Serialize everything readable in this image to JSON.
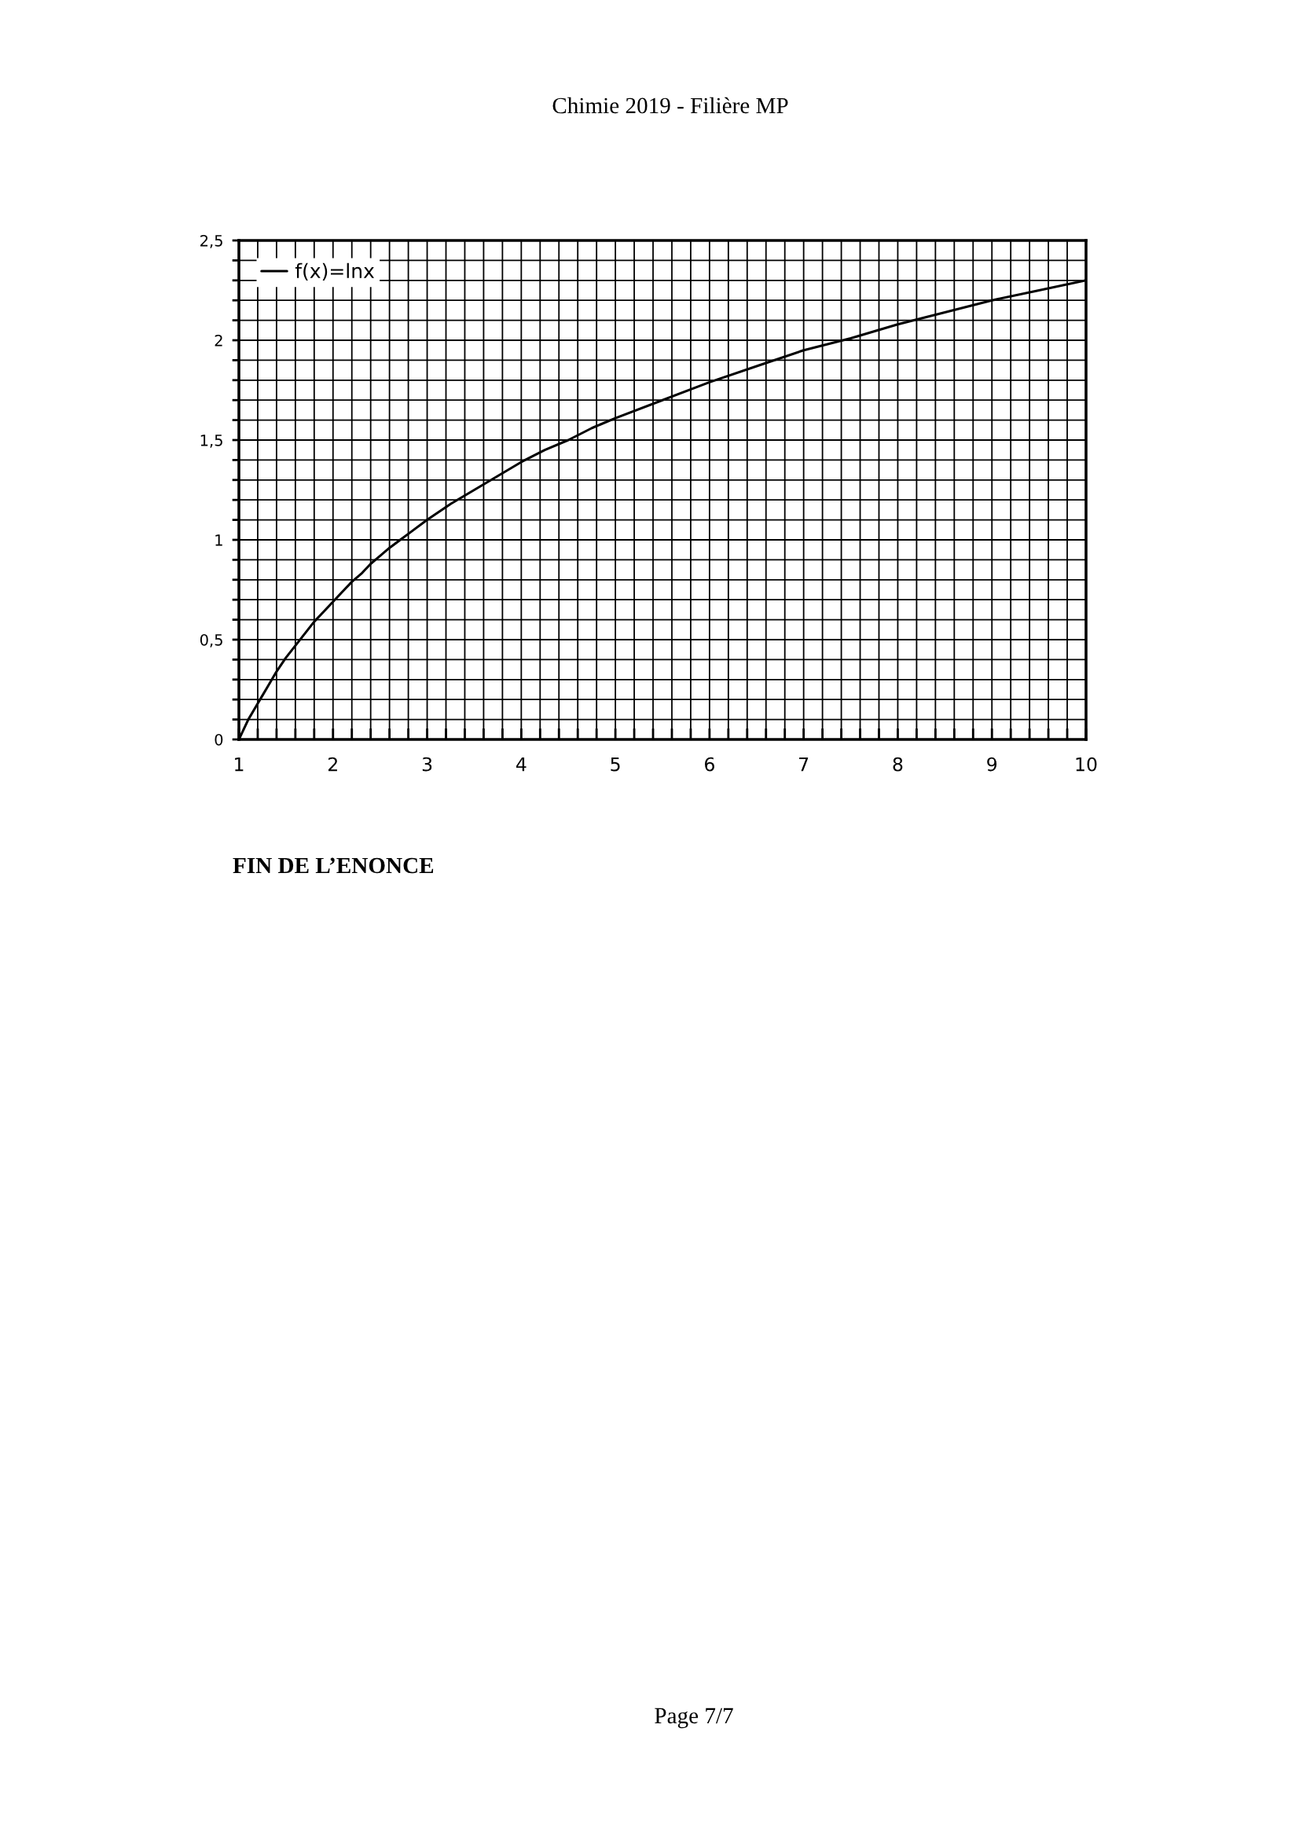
{
  "chart_data": {
    "type": "line",
    "annotations": [
      "Chimie 2019 - Filière MP",
      "FIN DE L’ENONCE",
      "Page 7/7"
    ],
    "series": [
      {
        "name": "f(x)=lnx",
        "color": "#000000",
        "line_style": "solid",
        "x": [
          1,
          1.05,
          1.1,
          1.15,
          1.2,
          1.25,
          1.3,
          1.35,
          1.4,
          1.5,
          1.6,
          1.7,
          1.8,
          1.9,
          2,
          2.1,
          2.2,
          2.3,
          2.4,
          2.5,
          2.6,
          2.8,
          3,
          3.25,
          3.5,
          3.75,
          4,
          4.25,
          4.5,
          4.75,
          5,
          5.5,
          6,
          6.5,
          7,
          7.5,
          8,
          8.5,
          9,
          9.5,
          10
        ],
        "values": [
          0,
          0.05,
          0.1,
          0.14,
          0.18,
          0.22,
          0.26,
          0.3,
          0.34,
          0.41,
          0.47,
          0.53,
          0.59,
          0.64,
          0.69,
          0.74,
          0.79,
          0.83,
          0.88,
          0.92,
          0.96,
          1.03,
          1.1,
          1.18,
          1.25,
          1.32,
          1.39,
          1.45,
          1.5,
          1.56,
          1.61,
          1.7,
          1.79,
          1.87,
          1.95,
          2.01,
          2.08,
          2.14,
          2.2,
          2.25,
          2.3
        ]
      }
    ],
    "xlim": [
      1,
      10
    ],
    "ylim": [
      0,
      2.5
    ],
    "xticks": [
      1,
      {
        "value": 1.2,
        "label": null
      },
      {
        "value": 1.4,
        "label": null
      },
      {
        "value": 1.6,
        "label": null
      },
      {
        "value": 1.8,
        "label": null
      },
      2,
      {
        "value": 2.2,
        "label": null
      },
      {
        "value": 2.4,
        "label": null
      },
      {
        "value": 2.6,
        "label": null
      },
      {
        "value": 2.8,
        "label": null
      },
      3,
      {
        "value": 3.2,
        "label": null
      },
      {
        "value": 3.4,
        "label": null
      },
      {
        "value": 3.6,
        "label": null
      },
      {
        "value": 3.8,
        "label": null
      },
      4,
      {
        "value": 4.2,
        "label": null
      },
      {
        "value": 4.4,
        "label": null
      },
      {
        "value": 4.6,
        "label": null
      },
      {
        "value": 4.8,
        "label": null
      },
      5,
      {
        "value": 5.2,
        "label": null
      },
      {
        "value": 5.4,
        "label": null
      },
      {
        "value": 5.6,
        "label": null
      },
      {
        "value": 5.8,
        "label": null
      },
      6,
      {
        "value": 6.2,
        "label": null
      },
      {
        "value": 6.4,
        "label": null
      },
      {
        "value": 6.6,
        "label": null
      },
      {
        "value": 6.8,
        "label": null
      },
      7,
      {
        "value": 7.2,
        "label": null
      },
      {
        "value": 7.4,
        "label": null
      },
      {
        "value": 7.6,
        "label": null
      },
      {
        "value": 7.8,
        "label": null
      },
      8,
      {
        "value": 8.2,
        "label": null
      },
      {
        "value": 8.4,
        "label": null
      },
      {
        "value": 8.6,
        "label": null
      },
      {
        "value": 8.8,
        "label": null
      },
      9,
      {
        "value": 9.2,
        "label": null
      },
      {
        "value": 9.4,
        "label": null
      },
      {
        "value": 9.6,
        "label": null
      },
      {
        "value": 9.8,
        "label": null
      },
      10
    ],
    "yticks": [
      0,
      {
        "value": 0.1,
        "label": null
      },
      {
        "value": 0.2,
        "label": null
      },
      {
        "value": 0.3,
        "label": null
      },
      {
        "value": 0.4,
        "label": null
      },
      {
        "value": 0.5,
        "label": "0,5"
      },
      {
        "value": 0.6,
        "label": null
      },
      {
        "value": 0.7,
        "label": null
      },
      {
        "value": 0.8,
        "label": null
      },
      {
        "value": 0.9,
        "label": null
      },
      1,
      {
        "value": 1.1,
        "label": null
      },
      {
        "value": 1.2,
        "label": null
      },
      {
        "value": 1.3,
        "label": null
      },
      {
        "value": 1.4,
        "label": null
      },
      {
        "value": 1.5,
        "label": "1,5"
      },
      {
        "value": 1.6,
        "label": null
      },
      {
        "value": 1.7,
        "label": null
      },
      {
        "value": 1.8,
        "label": null
      },
      {
        "value": 1.9,
        "label": null
      },
      2,
      {
        "value": 2.1,
        "label": null
      },
      {
        "value": 2.2,
        "label": null
      },
      {
        "value": 2.3,
        "label": null
      },
      {
        "value": 2.4,
        "label": null
      },
      {
        "value": 2.5,
        "label": "2,5"
      }
    ],
    "grid": true,
    "legend": "top left"
  }
}
